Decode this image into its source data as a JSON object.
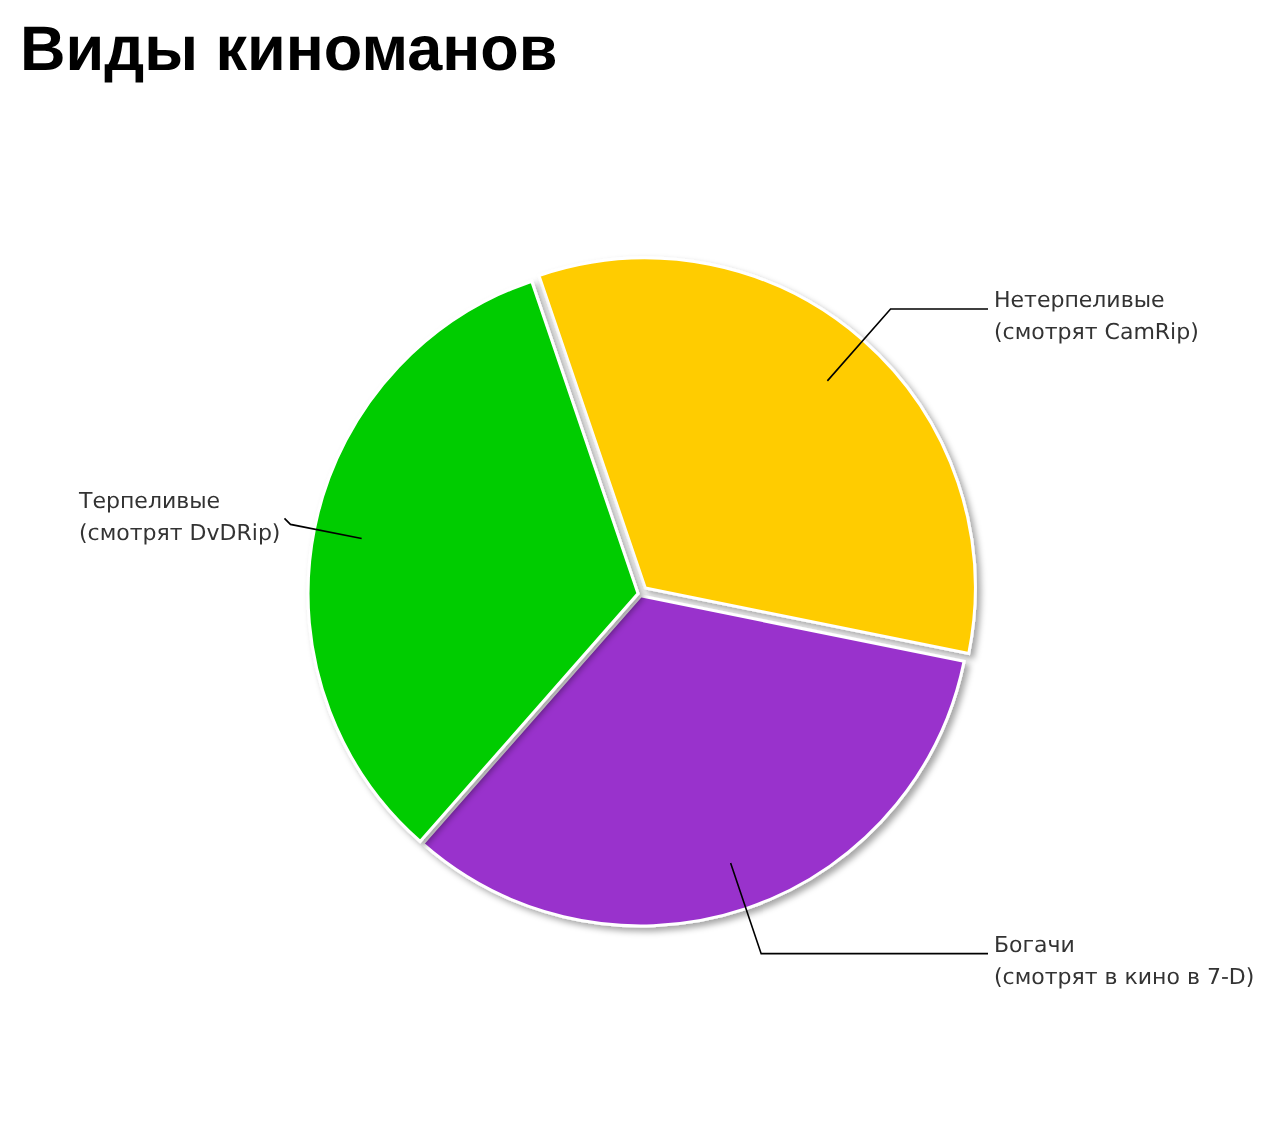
{
  "chart_data": {
    "type": "pie",
    "title": "Виды киноманов",
    "categories": [
      "Нетерпеливые\n(смотрят CamRip)",
      "Богачи\n(смотрят в кино в 7-D)",
      "Терпеливые\n(смотрят DvDRip)"
    ],
    "values": [
      33.4,
      33.3,
      33.3
    ],
    "colors": [
      "#ffcc00",
      "#9933cc",
      "#00cc00"
    ]
  }
}
